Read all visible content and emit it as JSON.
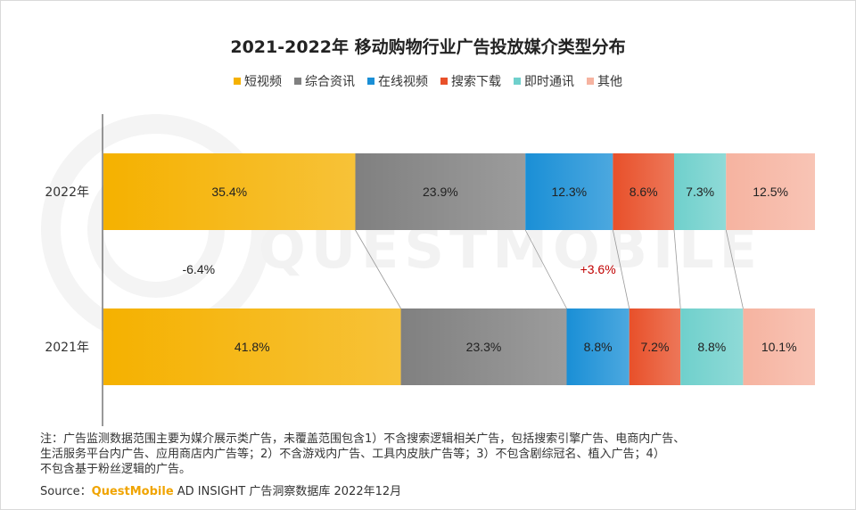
{
  "chart_data": {
    "type": "bar",
    "orientation": "horizontal-stacked-100",
    "title": "2021-2022年 移动购物行业广告投放媒介类型分布",
    "categories": [
      "2022年",
      "2021年"
    ],
    "series": [
      {
        "name": "短视频",
        "color": "#f5b100",
        "values": [
          35.4,
          41.8
        ],
        "labels": [
          "35.4%",
          "41.8%"
        ]
      },
      {
        "name": "综合资讯",
        "color": "#808080",
        "values": [
          23.9,
          23.3
        ],
        "labels": [
          "23.9%",
          "23.3%"
        ]
      },
      {
        "name": "在线视频",
        "color": "#1a8fd6",
        "values": [
          12.3,
          8.8
        ],
        "labels": [
          "12.3%",
          "8.8%"
        ]
      },
      {
        "name": "搜索下载",
        "color": "#e8502a",
        "values": [
          8.6,
          7.2
        ],
        "labels": [
          "8.6%",
          "7.2%"
        ]
      },
      {
        "name": "即时通讯",
        "color": "#6fd0cc",
        "values": [
          7.3,
          8.8
        ],
        "labels": [
          "7.3%",
          "8.8%"
        ]
      },
      {
        "name": "其他",
        "color": "#f6b3a0",
        "values": [
          12.5,
          10.1
        ],
        "labels": [
          "12.5%",
          "10.1%"
        ]
      }
    ],
    "xlim": [
      0,
      100
    ],
    "legend_position": "top",
    "grid": false,
    "annotations": [
      {
        "text": "-6.4%",
        "series": "短视频",
        "color": "#222222"
      },
      {
        "text": "+3.6%",
        "series": "在线视频",
        "color": "#c00000"
      }
    ]
  },
  "notes": {
    "line1": "注：广告监测数据范围主要为媒介展示类广告，未覆盖范围包含1）不含搜索逻辑相关广告，包括搜索引擎广告、电商内广告、",
    "line2": "生活服务平台内广告、应用商店内广告等；2）不含游戏内广告、工具内皮肤广告等；3）不包含剧综冠名、植入广告；4）",
    "line3": "不包含基于粉丝逻辑的广告。"
  },
  "source": {
    "prefix": "Source：",
    "brand": "QuestMobile",
    "suffix": " AD INSIGHT 广告洞察数据库 2022年12月"
  },
  "watermark": "QUESTMOBILE"
}
